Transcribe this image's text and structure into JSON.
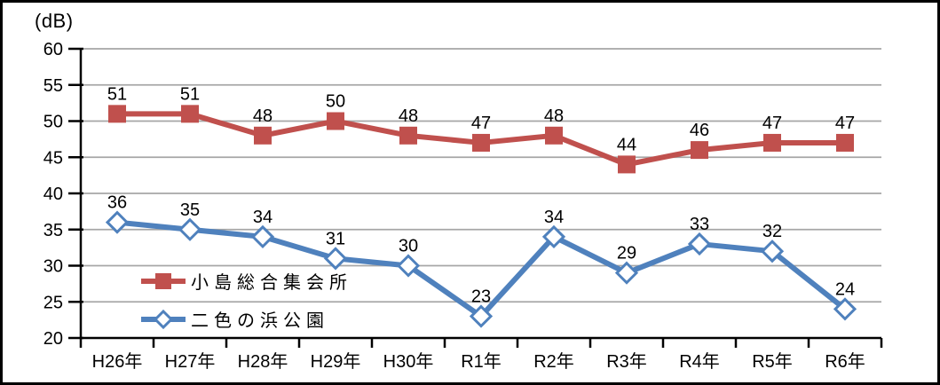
{
  "chart_data": {
    "type": "line",
    "title": "",
    "ylabel": "(dB)",
    "xlabel": "",
    "categories": [
      "H26年",
      "H27年",
      "H28年",
      "H29年",
      "H30年",
      "R1年",
      "R2年",
      "R3年",
      "R4年",
      "R5年",
      "R6年"
    ],
    "series": [
      {
        "name": "小島総合集会所",
        "color": "#c0504d",
        "marker": "filled-square",
        "values": [
          51,
          51,
          48,
          50,
          48,
          47,
          48,
          44,
          46,
          47,
          47
        ]
      },
      {
        "name": "二色の浜公園",
        "color": "#4f81bd",
        "marker": "open-diamond",
        "values": [
          36,
          35,
          34,
          31,
          30,
          23,
          34,
          29,
          33,
          32,
          24
        ]
      }
    ],
    "ylim": [
      20,
      60
    ],
    "ytick_step": 5,
    "grid": true,
    "data_labels": true,
    "legend_position": "inside-lower-left",
    "colors": {
      "gridline": "#a6a6a6",
      "axis": "#000000",
      "label_text": "#000000",
      "plot_background": "#ffffff",
      "frame_border": "#000000"
    }
  }
}
